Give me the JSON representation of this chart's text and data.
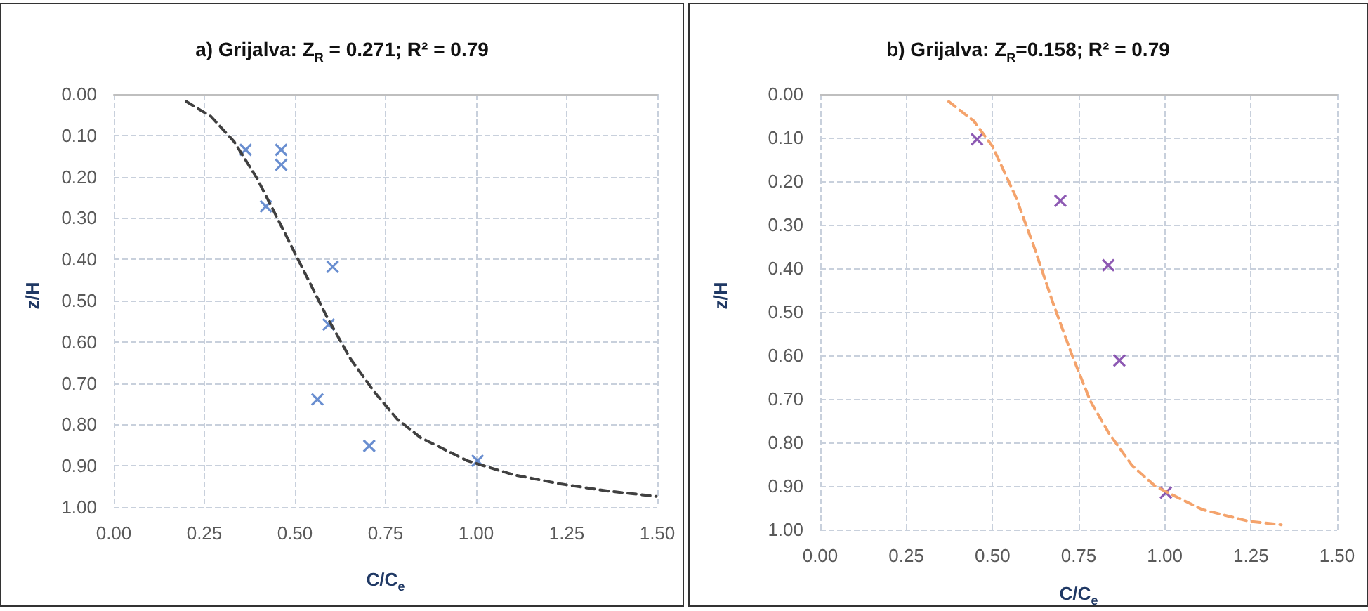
{
  "chart_data": [
    {
      "type": "scatter",
      "title": "a) Grijalva:  Z$_{R}$ = 0.271; R² = 0.79",
      "xlabel": "C/C$_{e}$",
      "ylabel": "z/H",
      "series": [
        {
          "type": "scatter",
          "color": "#4472c4",
          "marker": "cross",
          "x": [
            0.364,
            0.462,
            0.462,
            0.42,
            0.604,
            0.593,
            0.562,
            0.705,
            1.004
          ],
          "values": [
            0.135,
            0.135,
            0.171,
            0.272,
            0.418,
            0.558,
            0.739,
            0.852,
            0.888
          ]
        },
        {
          "type": "line",
          "color": "#404040",
          "marker": "none",
          "line_style": "dashed",
          "x": [
            0.2,
            0.268,
            0.332,
            0.396,
            0.461,
            0.525,
            0.589,
            0.654,
            0.718,
            0.782,
            0.847,
            0.976,
            1.104,
            1.233,
            1.362,
            1.497
          ],
          "values": [
            0.018,
            0.054,
            0.115,
            0.205,
            0.317,
            0.429,
            0.541,
            0.642,
            0.72,
            0.787,
            0.832,
            0.888,
            0.922,
            0.944,
            0.961,
            0.974
          ]
        }
      ],
      "xlim": [
        0,
        1.5
      ],
      "xticks": [
        {
          "value": 0,
          "label": "0.00"
        },
        {
          "value": 0.25,
          "label": "0.25"
        },
        {
          "value": 0.5,
          "label": "0.50"
        },
        {
          "value": 0.75,
          "label": "0.75"
        },
        {
          "value": 1,
          "label": "1.00"
        },
        {
          "value": 1.25,
          "label": "1.25"
        },
        {
          "value": 1.5,
          "label": "1.50"
        }
      ],
      "ylim": [
        1,
        0
      ],
      "yticks": [
        {
          "value": 0,
          "label": "0.00"
        },
        {
          "value": 0.1,
          "label": "0.10"
        },
        {
          "value": 0.2,
          "label": "0.20"
        },
        {
          "value": 0.3,
          "label": "0.30"
        },
        {
          "value": 0.4,
          "label": "0.40"
        },
        {
          "value": 0.5,
          "label": "0.50"
        },
        {
          "value": 0.6,
          "label": "0.60"
        },
        {
          "value": 0.7,
          "label": "0.70"
        },
        {
          "value": 0.8,
          "label": "0.80"
        },
        {
          "value": 0.9,
          "label": "0.90"
        },
        {
          "value": 1,
          "label": "1.00"
        }
      ],
      "grid": true
    },
    {
      "type": "scatter",
      "title": "b) Grijalva:  Z$_{R}$=0.158; R² = 0.79",
      "xlabel": "C/C$_{e}$",
      "ylabel": "z/H",
      "series": [
        {
          "type": "scatter",
          "color": "#7030a0",
          "marker": "cross",
          "x": [
            0.455,
            0.697,
            0.836,
            0.868,
            1.003
          ],
          "values": [
            0.104,
            0.245,
            0.393,
            0.612,
            0.915
          ]
        },
        {
          "type": "line",
          "color": "#f4a36c",
          "marker": "none",
          "line_style": "dashed",
          "x": [
            0.373,
            0.446,
            0.5,
            0.568,
            0.622,
            0.676,
            0.73,
            0.784,
            0.838,
            0.905,
            0.973,
            1.108,
            1.243,
            1.338
          ],
          "values": [
            0.017,
            0.062,
            0.12,
            0.237,
            0.354,
            0.481,
            0.598,
            0.705,
            0.779,
            0.853,
            0.901,
            0.954,
            0.981,
            0.989
          ]
        }
      ],
      "xlim": [
        0,
        1.5
      ],
      "xticks": [
        {
          "value": 0,
          "label": "0.00"
        },
        {
          "value": 0.25,
          "label": "0.25"
        },
        {
          "value": 0.5,
          "label": "0.50"
        },
        {
          "value": 0.75,
          "label": "0.75"
        },
        {
          "value": 1,
          "label": "1.00"
        },
        {
          "value": 1.25,
          "label": "1.25"
        },
        {
          "value": 1.5,
          "label": "1.50"
        }
      ],
      "ylim": [
        1,
        0
      ],
      "yticks": [
        {
          "value": 0,
          "label": "0.00"
        },
        {
          "value": 0.1,
          "label": "0.10"
        },
        {
          "value": 0.2,
          "label": "0.20"
        },
        {
          "value": 0.3,
          "label": "0.30"
        },
        {
          "value": 0.4,
          "label": "0.40"
        },
        {
          "value": 0.5,
          "label": "0.50"
        },
        {
          "value": 0.6,
          "label": "0.60"
        },
        {
          "value": 0.7,
          "label": "0.70"
        },
        {
          "value": 0.8,
          "label": "0.80"
        },
        {
          "value": 0.9,
          "label": "0.90"
        },
        {
          "value": 1,
          "label": "1.00"
        }
      ],
      "grid": true
    }
  ]
}
